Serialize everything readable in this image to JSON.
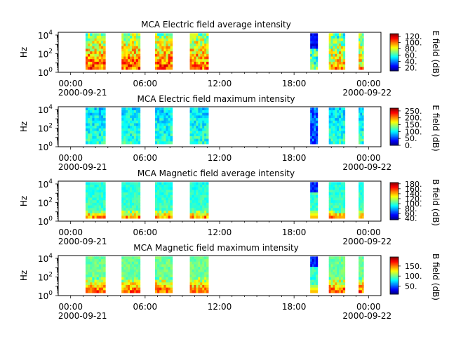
{
  "figure": {
    "x_ticks": [
      "00:00",
      "06:00",
      "12:00",
      "18:00",
      "00:00"
    ],
    "x_tick_hours": [
      0,
      6,
      12,
      18,
      24
    ],
    "x_dates": [
      "2000-09-21",
      "2000-09-22"
    ],
    "x_range_hours": [
      -1,
      25
    ]
  },
  "chart_data": [
    {
      "type": "heatmap",
      "title": "MCA  Electric field average intensity",
      "ylabel": "Hz",
      "yscale": "log",
      "y_ticks": [
        "10^4",
        "10^2",
        "10^0"
      ],
      "y_tick_exponents": [
        4,
        2,
        0
      ],
      "ylim_exponent": [
        0,
        4.3
      ],
      "colorbar_label": "E field (dB)",
      "colorbar_ticks": [
        "120.",
        "100.",
        "80.",
        "60.",
        "40.",
        "20."
      ],
      "colorbar_tick_values": [
        120,
        100,
        80,
        60,
        40,
        20
      ],
      "colorbar_range": [
        10,
        128
      ],
      "segments": [
        {
          "start_hour": 1.2,
          "end_hour": 2.8,
          "style": "warm"
        },
        {
          "start_hour": 4.1,
          "end_hour": 5.6,
          "style": "warm"
        },
        {
          "start_hour": 6.8,
          "end_hour": 8.2,
          "style": "warm"
        },
        {
          "start_hour": 9.6,
          "end_hour": 11.1,
          "style": "warm"
        },
        {
          "start_hour": 19.3,
          "end_hour": 19.9,
          "style": "spike"
        },
        {
          "start_hour": 20.8,
          "end_hour": 22.1,
          "style": "mixed"
        },
        {
          "start_hour": 23.2,
          "end_hour": 23.6,
          "style": "mixed"
        }
      ]
    },
    {
      "type": "heatmap",
      "title": "MCA  Electric field maximum intensity",
      "ylabel": "Hz",
      "yscale": "log",
      "y_ticks": [
        "10^4",
        "10^2",
        "10^0"
      ],
      "y_tick_exponents": [
        4,
        2,
        0
      ],
      "ylim_exponent": [
        0,
        4.3
      ],
      "colorbar_label": "E field (dB)",
      "colorbar_ticks": [
        "250.",
        "200.",
        "150.",
        "100.",
        "50.",
        "0."
      ],
      "colorbar_tick_values": [
        250,
        200,
        150,
        100,
        50,
        0
      ],
      "colorbar_range": [
        0,
        270
      ],
      "segments": [
        {
          "start_hour": 1.2,
          "end_hour": 2.8,
          "style": "cool"
        },
        {
          "start_hour": 4.1,
          "end_hour": 5.6,
          "style": "cool"
        },
        {
          "start_hour": 6.8,
          "end_hour": 8.2,
          "style": "cool"
        },
        {
          "start_hour": 9.6,
          "end_hour": 11.1,
          "style": "cool"
        },
        {
          "start_hour": 19.3,
          "end_hour": 19.9,
          "style": "deep"
        },
        {
          "start_hour": 20.8,
          "end_hour": 22.1,
          "style": "cool"
        },
        {
          "start_hour": 23.2,
          "end_hour": 23.6,
          "style": "cool"
        }
      ]
    },
    {
      "type": "heatmap",
      "title": "MCA  Magnetic field average intensity",
      "ylabel": "Hz",
      "yscale": "log",
      "y_ticks": [
        "10^4",
        "10^2",
        "10^0"
      ],
      "y_tick_exponents": [
        4,
        2,
        0
      ],
      "ylim_exponent": [
        0,
        4.3
      ],
      "colorbar_label": "B field (dB)",
      "colorbar_ticks": [
        "180.",
        "160.",
        "140.",
        "120.",
        "100.",
        "80.",
        "60.",
        "40."
      ],
      "colorbar_tick_values": [
        180,
        160,
        140,
        120,
        100,
        80,
        60,
        40
      ],
      "colorbar_range": [
        35,
        185
      ],
      "segments": [
        {
          "start_hour": 1.2,
          "end_hour": 2.8,
          "style": "mag"
        },
        {
          "start_hour": 4.1,
          "end_hour": 5.6,
          "style": "mag"
        },
        {
          "start_hour": 6.8,
          "end_hour": 8.2,
          "style": "mag"
        },
        {
          "start_hour": 9.6,
          "end_hour": 11.1,
          "style": "mag"
        },
        {
          "start_hour": 19.3,
          "end_hour": 19.9,
          "style": "magspike"
        },
        {
          "start_hour": 20.8,
          "end_hour": 22.1,
          "style": "mag"
        },
        {
          "start_hour": 23.2,
          "end_hour": 23.6,
          "style": "mag"
        }
      ]
    },
    {
      "type": "heatmap",
      "title": "MCA  Magnetic field maximum intensity",
      "ylabel": "Hz",
      "yscale": "log",
      "y_ticks": [
        "10^4",
        "10^2",
        "10^0"
      ],
      "y_tick_exponents": [
        4,
        2,
        0
      ],
      "ylim_exponent": [
        0,
        4.3
      ],
      "colorbar_label": "B field (dB)",
      "colorbar_ticks": [
        "150.",
        "100.",
        "50."
      ],
      "colorbar_tick_values": [
        150,
        100,
        50
      ],
      "colorbar_range": [
        10,
        195
      ],
      "segments": [
        {
          "start_hour": 1.2,
          "end_hour": 2.8,
          "style": "magmax"
        },
        {
          "start_hour": 4.1,
          "end_hour": 5.6,
          "style": "magmax"
        },
        {
          "start_hour": 6.8,
          "end_hour": 8.2,
          "style": "magmax"
        },
        {
          "start_hour": 9.6,
          "end_hour": 11.1,
          "style": "magmax"
        },
        {
          "start_hour": 19.3,
          "end_hour": 19.9,
          "style": "magspike"
        },
        {
          "start_hour": 20.8,
          "end_hour": 22.1,
          "style": "magmax"
        },
        {
          "start_hour": 23.2,
          "end_hour": 23.6,
          "style": "magmax"
        }
      ]
    }
  ]
}
